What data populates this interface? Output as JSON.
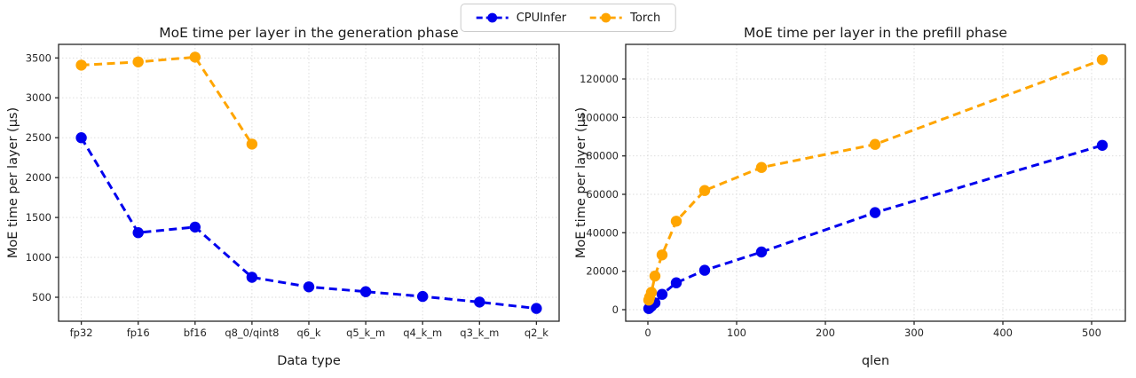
{
  "page": {
    "background": "#ffffff"
  },
  "legend": {
    "items": [
      {
        "label": "CPUInfer",
        "color": "#0000ee"
      },
      {
        "label": "Torch",
        "color": "#ffa500"
      }
    ]
  },
  "chart_data": [
    {
      "type": "line",
      "title": "MoE time per layer in the generation phase",
      "xlabel": "Data type",
      "ylabel": "MoE time per layer (µs)",
      "x_type": "categorical",
      "categories": [
        "fp32",
        "fp16",
        "bf16",
        "q8_0/qint8",
        "q6_k",
        "q5_k_m",
        "q4_k_m",
        "q3_k_m",
        "q2_k"
      ],
      "yticks": [
        500,
        1000,
        1500,
        2000,
        2500,
        3000,
        3500
      ],
      "ylim": [
        200,
        3670
      ],
      "grid": true,
      "legend_position": "top-center-figure",
      "line_style": "dashed",
      "marker": "circle",
      "series": [
        {
          "name": "CPUInfer",
          "color": "#0000ee",
          "values": [
            2500,
            1310,
            1380,
            750,
            630,
            570,
            510,
            440,
            360
          ]
        },
        {
          "name": "Torch",
          "color": "#ffa500",
          "values": [
            3410,
            3450,
            3510,
            2420,
            null,
            null,
            null,
            null,
            null
          ]
        }
      ]
    },
    {
      "type": "line",
      "title": "MoE time per layer in the prefill phase",
      "xlabel": "qlen",
      "ylabel": "MoE time per layer (µs)",
      "x_type": "numeric",
      "x": [
        1,
        2,
        4,
        8,
        16,
        32,
        64,
        128,
        256,
        512
      ],
      "xticks": [
        0,
        100,
        200,
        300,
        400,
        500
      ],
      "xlim": [
        -25,
        538
      ],
      "yticks": [
        0,
        20000,
        40000,
        60000,
        80000,
        100000,
        120000
      ],
      "ylim": [
        -6000,
        138000
      ],
      "grid": true,
      "line_style": "dashed",
      "marker": "circle",
      "series": [
        {
          "name": "CPUInfer",
          "color": "#0000ee",
          "values": [
            600,
            1000,
            1800,
            3500,
            8000,
            14000,
            20500,
            30000,
            50500,
            85500
          ]
        },
        {
          "name": "Torch",
          "color": "#ffa500",
          "values": [
            5000,
            6500,
            9000,
            17500,
            28500,
            46000,
            62000,
            74000,
            86000,
            130000
          ]
        }
      ]
    }
  ]
}
